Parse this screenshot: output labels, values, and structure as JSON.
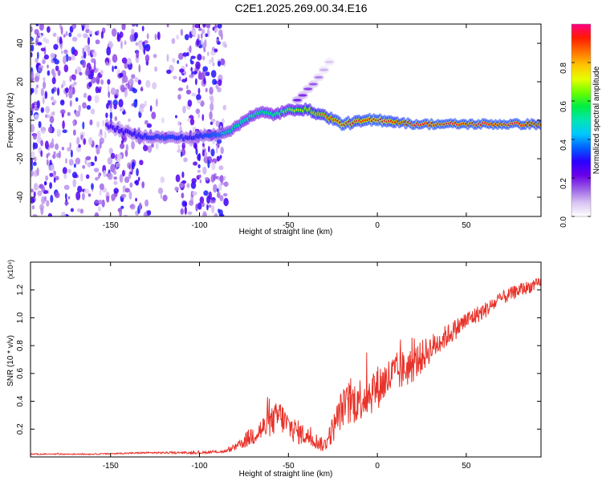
{
  "page_title": "C2E1.2025.269.00.34.E16",
  "chart_data": [
    {
      "type": "heatmap",
      "id": "spectrogram",
      "title": "C2E1.2025.269.00.34.E16",
      "xlabel": "Height of straight line (km)",
      "ylabel": "Frequency (Hz)",
      "xlim": [
        -195,
        92
      ],
      "ylim": [
        -50,
        50
      ],
      "xticks": [
        -150,
        -100,
        -50,
        0,
        50
      ],
      "yticks": [
        -40,
        -20,
        0,
        20,
        40
      ],
      "colorbar": {
        "label": "Normalized spectral amplitude",
        "range": [
          0.0,
          1.0
        ],
        "ticks": [
          0.0,
          0.2,
          0.4,
          0.6,
          0.8
        ],
        "colors": [
          "#ffffff",
          "#d8c4f2",
          "#9b5fe6",
          "#6a00e8",
          "#2a00ff",
          "#0060ff",
          "#00c8ff",
          "#00e6b4",
          "#00ee44",
          "#6aff00",
          "#e6ff00",
          "#ffc400",
          "#ff7000",
          "#ff1a00",
          "#ff0080"
        ]
      },
      "traces": [
        {
          "name": "signal ridge",
          "x": [
            -152,
            -135,
            -120,
            -105,
            -95,
            -88,
            -80,
            -72,
            -65,
            -58,
            -50,
            -44,
            -38,
            -32,
            -26,
            -20,
            -12,
            -4,
            4,
            12,
            20,
            40,
            60,
            80,
            92
          ],
          "y": [
            -3,
            -8,
            -9,
            -9,
            -8,
            -7,
            -4,
            2,
            4,
            3,
            5,
            6,
            5,
            3,
            1,
            -2,
            -1,
            0,
            0,
            -1,
            -2,
            -2,
            -2,
            -2,
            -2
          ],
          "amplitude": [
            0.35,
            0.4,
            0.45,
            0.4,
            0.45,
            0.5,
            0.55,
            0.6,
            0.55,
            0.6,
            0.65,
            0.75,
            0.8,
            0.85,
            0.9,
            0.95,
            0.9,
            0.95,
            0.95,
            0.9,
            0.95,
            0.95,
            0.95,
            0.95,
            0.9
          ]
        },
        {
          "name": "rising branch",
          "x": [
            -45,
            -40,
            -35,
            -30,
            -25
          ],
          "y": [
            10,
            15,
            20,
            26,
            33
          ],
          "amplitude": [
            0.3,
            0.25,
            0.2,
            0.12,
            0.08
          ]
        }
      ],
      "noise_region_x": [
        -195,
        -85
      ]
    },
    {
      "type": "line",
      "id": "snr",
      "xlabel": "Height of straight line (km)",
      "ylabel": "SNR (10 * v/v)",
      "multiplier_label": "(x10⁴)",
      "xlim": [
        -195,
        92
      ],
      "ylim": [
        0,
        1.4
      ],
      "xticks": [
        -150,
        -100,
        -50,
        0,
        50
      ],
      "yticks": [
        0.2,
        0.4,
        0.6,
        0.8,
        1.0,
        1.2
      ],
      "series": [
        {
          "name": "SNR",
          "color": "#e8332a",
          "x": [
            -195,
            -160,
            -130,
            -100,
            -85,
            -78,
            -70,
            -62,
            -55,
            -50,
            -45,
            -40,
            -35,
            -30,
            -25,
            -20,
            -15,
            -10,
            -5,
            0,
            5,
            10,
            15,
            20,
            25,
            30,
            40,
            50,
            60,
            70,
            80,
            92
          ],
          "y": [
            0.02,
            0.02,
            0.03,
            0.03,
            0.04,
            0.08,
            0.16,
            0.22,
            0.3,
            0.22,
            0.18,
            0.15,
            0.12,
            0.08,
            0.2,
            0.35,
            0.38,
            0.42,
            0.45,
            0.5,
            0.55,
            0.6,
            0.63,
            0.66,
            0.72,
            0.78,
            0.88,
            0.98,
            1.05,
            1.14,
            1.2,
            1.25
          ],
          "noise": [
            0.004,
            0.004,
            0.006,
            0.008,
            0.01,
            0.03,
            0.08,
            0.1,
            0.12,
            0.1,
            0.09,
            0.07,
            0.06,
            0.05,
            0.1,
            0.14,
            0.16,
            0.16,
            0.16,
            0.16,
            0.15,
            0.15,
            0.14,
            0.13,
            0.12,
            0.1,
            0.08,
            0.07,
            0.06,
            0.05,
            0.05,
            0.04
          ]
        }
      ]
    }
  ]
}
